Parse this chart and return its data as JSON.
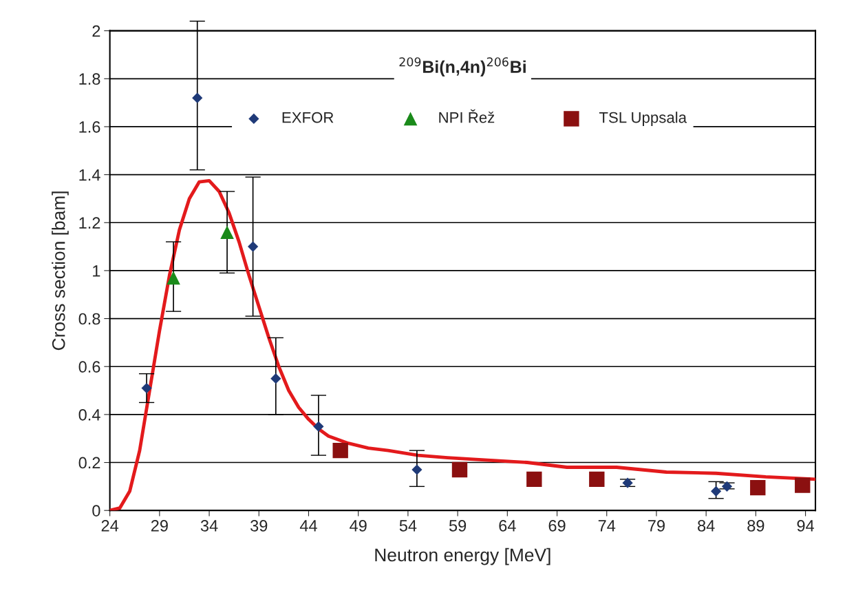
{
  "chart_data": {
    "type": "scatter",
    "title": "$^{209}$Bi(n,4n)$^{206}$Bi",
    "xlabel": "Neutron energy [MeV]",
    "ylabel": "Cross section [bam]",
    "xlim": [
      24,
      95
    ],
    "xticks": [
      24,
      29,
      34,
      39,
      44,
      49,
      54,
      59,
      64,
      69,
      74,
      79,
      84,
      89,
      94
    ],
    "ylim": [
      0,
      2
    ],
    "yticks": [
      0,
      0.2,
      0.4,
      0.6,
      0.8,
      1,
      1.2,
      1.4,
      1.6,
      1.8,
      2
    ],
    "grid": "y",
    "legend": "top",
    "series": [
      {
        "name": "EXFOR",
        "marker": "diamond",
        "color": "#1f3a78",
        "x": [
          27.7,
          32.8,
          38.4,
          40.7,
          45.0,
          54.9,
          76.1,
          85.0,
          86.1
        ],
        "values": [
          0.51,
          1.72,
          1.1,
          0.55,
          0.35,
          0.17,
          0.115,
          0.08,
          0.1
        ],
        "errors": [
          [
            0.45,
            0.57
          ],
          [
            1.42,
            2.04
          ],
          [
            0.81,
            1.39
          ],
          [
            0.4,
            0.72
          ],
          [
            0.23,
            0.48
          ],
          [
            0.1,
            0.25
          ],
          [
            0.1,
            0.13
          ],
          [
            0.05,
            0.12
          ],
          [
            0.09,
            0.115
          ]
        ]
      },
      {
        "type": "line",
        "color": "#e31a1c",
        "x": [
          24,
          25,
          26,
          27,
          28,
          29,
          30,
          31,
          32,
          33,
          34,
          35,
          36,
          37,
          38,
          39,
          40,
          41,
          42,
          43,
          44,
          45,
          46,
          48,
          50,
          52,
          55,
          58,
          62,
          66,
          70,
          75,
          80,
          85,
          90,
          95
        ],
        "values": [
          0,
          0.01,
          0.08,
          0.25,
          0.5,
          0.75,
          0.98,
          1.17,
          1.3,
          1.37,
          1.375,
          1.33,
          1.24,
          1.12,
          0.98,
          0.85,
          0.72,
          0.6,
          0.5,
          0.43,
          0.38,
          0.34,
          0.31,
          0.28,
          0.26,
          0.25,
          0.23,
          0.22,
          0.21,
          0.2,
          0.18,
          0.18,
          0.16,
          0.155,
          0.14,
          0.13
        ]
      },
      {
        "name": "NPI Řež",
        "marker": "triangle",
        "color": "#1a8a1a",
        "x": [
          30.4,
          35.8
        ],
        "values": [
          0.97,
          1.16
        ],
        "errors": [
          [
            0.83,
            1.12
          ],
          [
            0.99,
            1.33
          ]
        ]
      },
      {
        "name": "TSL Uppsala",
        "marker": "square",
        "color": "#8b1010",
        "x": [
          47.2,
          59.2,
          66.7,
          73.0,
          89.2,
          93.7
        ],
        "values": [
          0.25,
          0.17,
          0.13,
          0.13,
          0.095,
          0.105
        ]
      }
    ]
  }
}
